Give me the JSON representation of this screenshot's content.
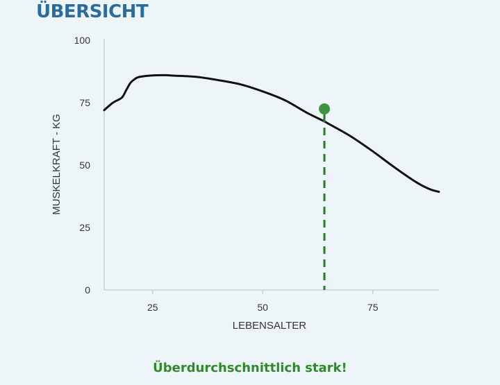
{
  "header": {
    "title": "ÜBERSICHT"
  },
  "chart_data": {
    "type": "line",
    "xlabel": "LEBENSALTER",
    "ylabel": "MUSKELKRAFT - KG",
    "xlim": [
      14,
      90
    ],
    "ylim": [
      0,
      100
    ],
    "x_ticks": [
      25,
      50,
      75
    ],
    "y_ticks": [
      0,
      25,
      50,
      75,
      100
    ],
    "grid": false,
    "series": [
      {
        "x": [
          14,
          16,
          18,
          19,
          20,
          21,
          22,
          25,
          28,
          30,
          35,
          40,
          45,
          50,
          55,
          60,
          64,
          65,
          70,
          75,
          80,
          85,
          88,
          90
        ],
        "y": [
          72,
          75,
          77,
          80,
          83,
          84.5,
          85.3,
          85.9,
          86,
          85.8,
          85.3,
          84,
          82.3,
          79.5,
          76,
          71,
          67.5,
          66.5,
          61.5,
          55.5,
          49,
          43,
          40.3,
          39.3
        ]
      }
    ],
    "highlight": {
      "x": 64,
      "y": 72.5
    },
    "colors": {
      "line": "#111111",
      "marker": "#3c9440",
      "dashed": "#2b7a2b",
      "axis": "#c9d0d6"
    }
  },
  "footer": {
    "verdict": "Überdurchschnittlich stark!"
  }
}
